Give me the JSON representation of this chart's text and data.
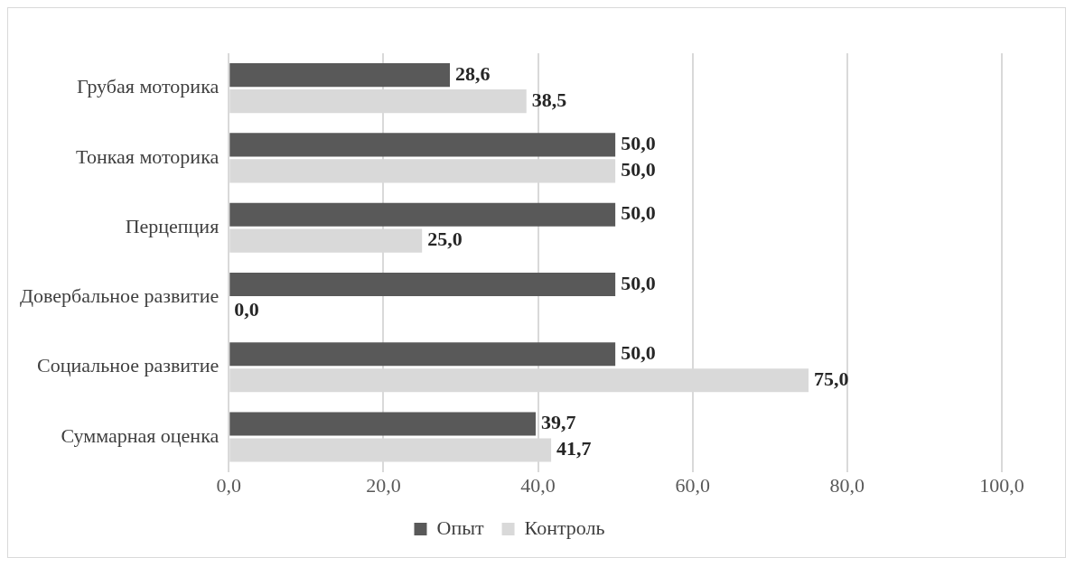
{
  "chart_data": {
    "type": "bar",
    "orientation": "horizontal",
    "categories": [
      "Грубая моторика",
      "Тонкая моторика",
      "Перцепция",
      "Довербальное развитие",
      "Социальное развитие",
      "Суммарная оценка"
    ],
    "series": [
      {
        "name": "Опыт",
        "color": "#595959",
        "values": [
          28.6,
          50.0,
          50.0,
          50.0,
          50.0,
          39.7
        ],
        "value_labels": [
          "28,6",
          "50,0",
          "50,0",
          "50,0",
          "50,0",
          "39,7"
        ]
      },
      {
        "name": "Контроль",
        "color": "#d9d9d9",
        "values": [
          38.5,
          50.0,
          25.0,
          0.0,
          75.0,
          41.7
        ],
        "value_labels": [
          "38,5",
          "50,0",
          "25,0",
          "0,0",
          "75,0",
          "41,7"
        ]
      }
    ],
    "xlim": [
      0,
      100
    ],
    "xticks": [
      {
        "value": 0,
        "label": "0,0"
      },
      {
        "value": 20,
        "label": "20,0"
      },
      {
        "value": 40,
        "label": "40,0"
      },
      {
        "value": 60,
        "label": "60,0"
      },
      {
        "value": 80,
        "label": "80,0"
      },
      {
        "value": 100,
        "label": "100,0"
      }
    ],
    "grid": "x",
    "legend": "bottom"
  }
}
